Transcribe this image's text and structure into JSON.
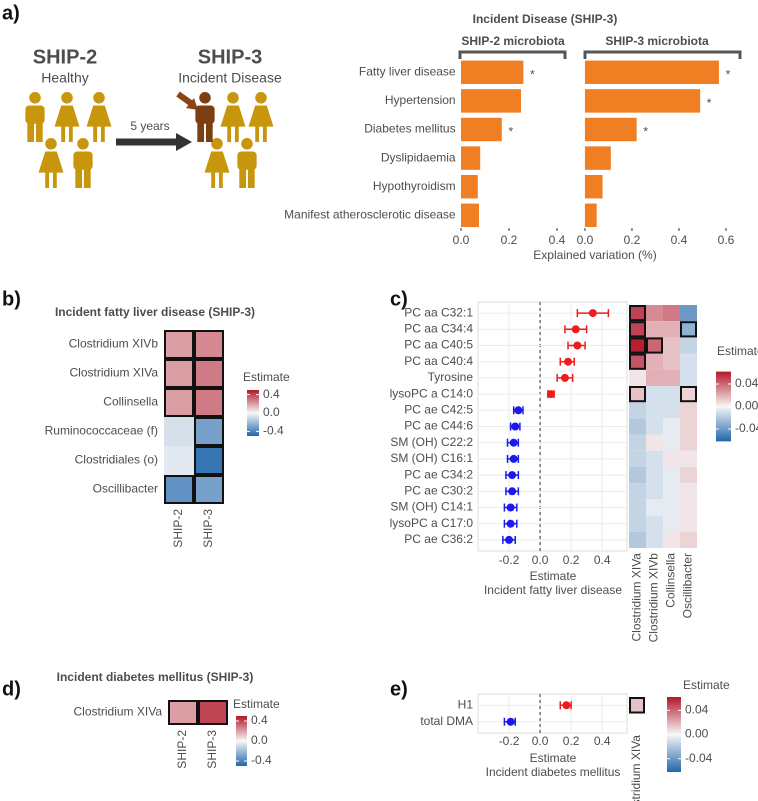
{
  "panel_labels": [
    "a)",
    "b)",
    "c)",
    "d)",
    "e)"
  ],
  "diagram": {
    "left_title": "SHIP-2",
    "left_subtitle": "Healthy",
    "arrow_label": "5 years",
    "right_title": "SHIP-3",
    "right_subtitle": "Incident Disease"
  },
  "chart_data": [
    {
      "type": "bar",
      "title": "Incident Disease (SHIP-3)",
      "subtitle": "SHIP-2 microbiota",
      "x_label": "Explained variation (%)",
      "categories": [
        "Fatty liver disease",
        "Hypertension",
        "Diabetes mellitus",
        "Dyslipidaemia",
        "Hypothyroidism",
        "Manifest atherosclerotic disease"
      ],
      "values": [
        0.26,
        0.25,
        0.17,
        0.08,
        0.07,
        0.075
      ],
      "markers": [
        "*",
        null,
        "*",
        null,
        null,
        null
      ],
      "color": "#f07f24",
      "xlim": [
        -0.01,
        0.43
      ],
      "xticks": [
        {
          "value": 0,
          "label": "0.0"
        },
        0.2,
        0.4
      ]
    },
    {
      "type": "bar",
      "subtitle": "SHIP-3 microbiota",
      "values": [
        0.57,
        0.49,
        0.22,
        0.11,
        0.075,
        0.05
      ],
      "markers": [
        "*",
        "*",
        "*",
        null,
        null,
        null
      ],
      "color": "#f07f24",
      "xlim": [
        -0.01,
        0.64
      ],
      "xticks": [
        {
          "value": 0,
          "label": "0.0"
        },
        0.2,
        0.4,
        0.6
      ]
    },
    {
      "type": "heatmap",
      "title": "Incident fatty liver disease (SHIP-3)",
      "rows": [
        "Clostridium XIVb",
        "Clostridium XIVa",
        "Collinsella",
        "Ruminococcaceae (f)",
        "Clostridiales (o)",
        "Oscillibacter"
      ],
      "columns": [
        "SHIP-2",
        "SHIP-3"
      ],
      "values": [
        [
          0.2,
          0.25
        ],
        [
          0.2,
          0.28
        ],
        [
          0.2,
          0.28
        ],
        [
          -0.08,
          -0.3
        ],
        [
          -0.05,
          -0.45
        ],
        [
          -0.35,
          -0.3
        ]
      ],
      "significant": [
        [
          true,
          true
        ],
        [
          true,
          true
        ],
        [
          true,
          true
        ],
        [
          false,
          true
        ],
        [
          false,
          true
        ],
        [
          true,
          true
        ]
      ],
      "legend_title": "Estimate",
      "clim": [
        -0.5,
        0.5
      ],
      "cticks": [
        0.4,
        {
          "value": 0,
          "label": "0.0"
        },
        -0.4
      ],
      "colors": [
        "#2166ac",
        "#f7f7f7",
        "#b2182b"
      ]
    },
    {
      "type": "forest",
      "grid": true,
      "reference_line": 0,
      "categories": [
        "PC aa C32:1",
        "PC aa C34:4",
        "PC aa C40:5",
        "PC aa C40:4",
        "Tyrosine",
        "lysoPC a C14:0",
        "PC ae C42:5",
        "PC ae C44:6",
        "SM (OH) C22:2",
        "SM (OH) C16:1",
        "PC ae C34:2",
        "PC ae C30:2",
        "SM (OH) C14:1",
        "lysoPC a C17:0",
        "PC ae C36:2"
      ],
      "values": [
        0.34,
        0.23,
        0.24,
        0.18,
        0.16,
        0.07,
        -0.14,
        -0.16,
        -0.17,
        -0.17,
        -0.18,
        -0.18,
        -0.19,
        -0.19,
        -0.2
      ],
      "lower": [
        0.24,
        0.16,
        0.18,
        0.13,
        0.11,
        0.05,
        -0.17,
        -0.19,
        -0.21,
        -0.21,
        -0.22,
        -0.22,
        -0.23,
        -0.23,
        -0.24
      ],
      "upper": [
        0.44,
        0.3,
        0.29,
        0.22,
        0.21,
        0.09,
        -0.11,
        -0.13,
        -0.14,
        -0.14,
        -0.14,
        -0.14,
        -0.15,
        -0.15,
        -0.16
      ],
      "positive_color": "#ee1c1c",
      "negative_color": "#1a1aee",
      "xlim": [
        -0.4,
        0.56
      ],
      "xticks": [
        -0.2,
        {
          "value": 0,
          "label": "0.0"
        },
        0.2,
        0.4
      ],
      "x_label": "Estimate",
      "x_sublabel": "Incident fatty liver disease"
    },
    {
      "type": "heatmap",
      "columns": [
        "Clostridium XIVa",
        "Clostridium XIVb",
        "Collinsella",
        "Oscillibacter"
      ],
      "values": [
        [
          0.05,
          0.03,
          0.035,
          -0.04
        ],
        [
          0.05,
          0.02,
          0.02,
          -0.03
        ],
        [
          0.06,
          0.04,
          0.015,
          -0.015
        ],
        [
          0.045,
          0.02,
          0.015,
          -0.01
        ],
        [
          0.005,
          0.02,
          0.02,
          -0.01
        ],
        [
          0.015,
          -0.01,
          -0.01,
          0.01
        ],
        [
          -0.015,
          -0.01,
          -0.01,
          0.01
        ],
        [
          -0.02,
          -0.01,
          -0.005,
          0.01
        ],
        [
          -0.015,
          0.005,
          -0.005,
          0.01
        ],
        [
          -0.015,
          -0.01,
          0.005,
          0.005
        ],
        [
          -0.02,
          -0.01,
          -0.005,
          0.01
        ],
        [
          -0.015,
          -0.01,
          -0.005,
          0.005
        ],
        [
          -0.015,
          -0.005,
          -0.005,
          0.005
        ],
        [
          -0.015,
          -0.01,
          -0.005,
          0.005
        ],
        [
          -0.02,
          -0.01,
          0.005,
          0.01
        ]
      ],
      "significant": [
        [
          true,
          false,
          false,
          false
        ],
        [
          true,
          false,
          false,
          true
        ],
        [
          true,
          true,
          false,
          false
        ],
        [
          true,
          false,
          false,
          false
        ],
        [
          false,
          false,
          false,
          false
        ],
        [
          true,
          false,
          false,
          true
        ],
        [
          false,
          false,
          false,
          false
        ],
        [
          false,
          false,
          false,
          false
        ],
        [
          false,
          false,
          false,
          false
        ],
        [
          false,
          false,
          false,
          false
        ],
        [
          false,
          false,
          false,
          false
        ],
        [
          false,
          false,
          false,
          false
        ],
        [
          false,
          false,
          false,
          false
        ],
        [
          false,
          false,
          false,
          false
        ],
        [
          false,
          false,
          false,
          false
        ]
      ],
      "legend_title": "Estimate",
      "clim": [
        -0.062,
        0.062
      ],
      "cticks": [
        0.04,
        {
          "value": 0,
          "label": "0.00"
        },
        -0.04
      ],
      "colors": [
        "#2166ac",
        "#f7f7f7",
        "#b2182b"
      ]
    },
    {
      "type": "heatmap",
      "title": "Incident diabetes mellitus (SHIP-3)",
      "rows": [
        "Clostridium XIVa"
      ],
      "columns": [
        "SHIP-2",
        "SHIP-3"
      ],
      "values": [
        [
          0.2,
          0.4
        ]
      ],
      "significant": [
        [
          true,
          true
        ]
      ],
      "legend_title": "Estimate",
      "clim": [
        -0.5,
        0.5
      ],
      "cticks": [
        0.4,
        {
          "value": 0,
          "label": "0.0"
        },
        -0.4
      ],
      "colors": [
        "#2166ac",
        "#f7f7f7",
        "#b2182b"
      ]
    },
    {
      "type": "forest",
      "grid": true,
      "reference_line": 0,
      "categories": [
        "H1",
        "total DMA"
      ],
      "values": [
        0.17,
        -0.19
      ],
      "lower": [
        0.13,
        -0.23
      ],
      "upper": [
        0.2,
        -0.16
      ],
      "positive_color": "#ee1c1c",
      "negative_color": "#1a1aee",
      "xlim": [
        -0.4,
        0.56
      ],
      "xticks": [
        -0.2,
        {
          "value": 0,
          "label": "0.0"
        },
        0.2,
        0.4
      ],
      "x_label": "Estimate",
      "x_sublabel": "Incident diabetes mellitus"
    },
    {
      "type": "heatmap",
      "columns": [
        "Clostridium XIVa"
      ],
      "values": [
        [
          0.015
        ],
        [
          null
        ]
      ],
      "significant": [
        [
          true
        ],
        [
          false
        ]
      ],
      "legend_title": "Estimate",
      "clim": [
        -0.062,
        0.062
      ],
      "cticks": [
        0.04,
        {
          "value": 0,
          "label": "0.00"
        },
        -0.04
      ],
      "colors": [
        "#2166ac",
        "#f7f7f7",
        "#b2182b"
      ]
    }
  ]
}
